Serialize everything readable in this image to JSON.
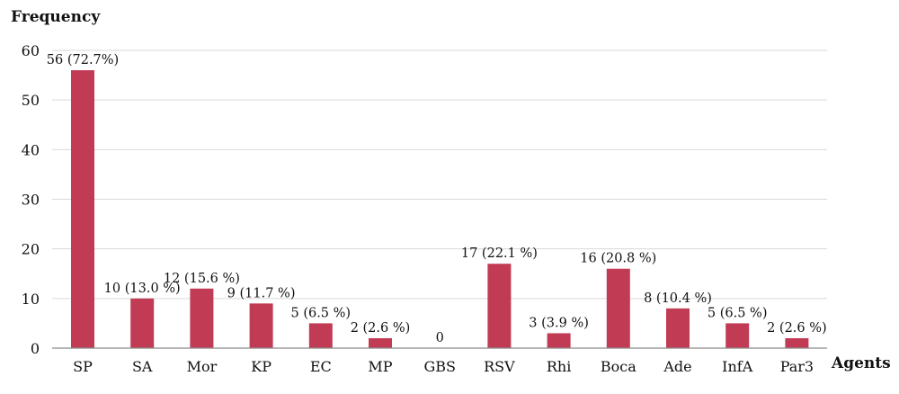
{
  "chart_data": {
    "type": "bar",
    "ylabel": "Frequency",
    "xlabel": "Agents",
    "ylim": [
      0,
      60
    ],
    "yticks": [
      "0",
      "10",
      "20",
      "30",
      "40",
      "50",
      "60"
    ],
    "grid": true,
    "bar_color": "#c23b55",
    "grid_color": "#d9d9d9",
    "categories": [
      "SP",
      "SA",
      "Mor",
      "KP",
      "EC",
      "MP",
      "GBS",
      "RSV",
      "Rhi",
      "Boca",
      "Ade",
      "InfA",
      "Par3"
    ],
    "values": [
      56,
      10,
      12,
      9,
      5,
      2,
      0,
      17,
      3,
      16,
      8,
      5,
      2
    ],
    "data_labels": [
      "56 (72.7%)",
      "10 (13.0 %)",
      "12 (15.6 %)",
      "9 (11.7 %)",
      "5 (6.5 %)",
      "2 (2.6 %)",
      "0",
      "17 (22.1 %)",
      "3 (3.9 %)",
      "16 (20.8 %)",
      "8 (10.4 %)",
      "5 (6.5 %)",
      "2 (2.6 %)"
    ]
  }
}
